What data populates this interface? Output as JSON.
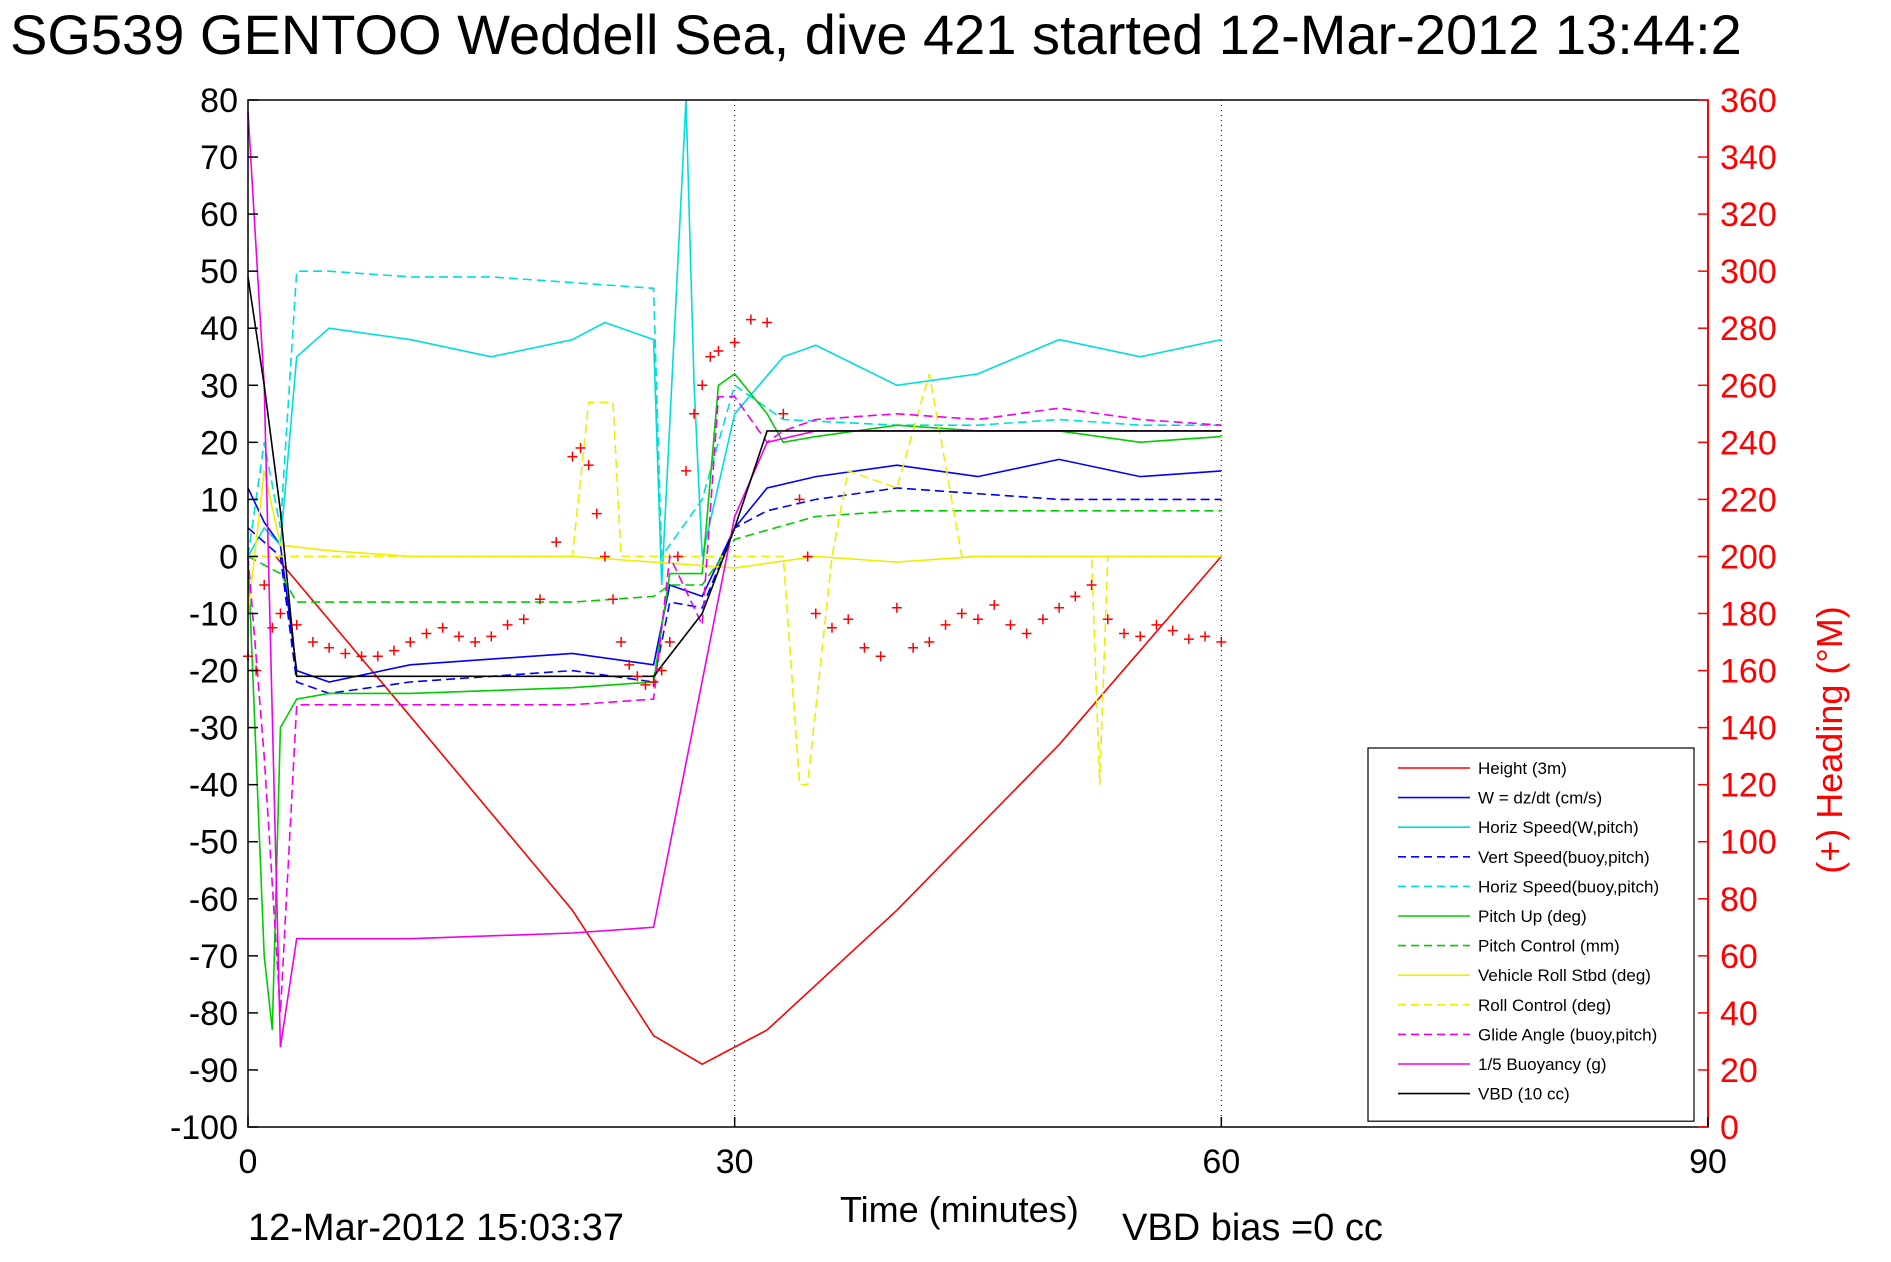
{
  "chart_data": {
    "type": "line",
    "title": "SG539 GENTOO Weddell Sea, dive 421 started 12-Mar-2012 13:44:2",
    "xlabel": "Time (minutes)",
    "ylabel": "",
    "y2label": "(+) Heading (°M)",
    "xlim": [
      0,
      90
    ],
    "ylim": [
      -100,
      80
    ],
    "y2lim": [
      0,
      360
    ],
    "x_ticks": [
      0,
      30,
      60,
      90
    ],
    "y_ticks": [
      80,
      70,
      60,
      50,
      40,
      30,
      20,
      10,
      0,
      -10,
      -20,
      -30,
      -40,
      -50,
      -60,
      -70,
      -80,
      -90,
      -100
    ],
    "y2_ticks": [
      360,
      340,
      320,
      300,
      280,
      260,
      240,
      220,
      200,
      180,
      160,
      140,
      120,
      100,
      80,
      60,
      40,
      20,
      0
    ],
    "grid": "dotted vertical at x ticks",
    "legend_position": "bottom-right",
    "footer_timestamp": "12-Mar-2012 15:03:37",
    "footer_note": "VBD bias =0 cc",
    "series": [
      {
        "name": "Height (3m)",
        "color": "#ff0000",
        "dash": "solid",
        "x": [
          1.7,
          10,
          20,
          25,
          28,
          32,
          40,
          50,
          60
        ],
        "y": [
          0,
          -28,
          -62,
          -84,
          -89,
          -83,
          -62,
          -33,
          0
        ]
      },
      {
        "name": "W = dz/dt (cm/s)",
        "color": "#0000ff",
        "dash": "solid",
        "x": [
          0,
          1,
          2,
          3,
          5,
          10,
          15,
          20,
          25,
          26,
          28,
          30,
          32,
          35,
          40,
          45,
          50,
          55,
          60
        ],
        "y": [
          12,
          6,
          2,
          -20,
          -22,
          -19,
          -18,
          -17,
          -19,
          -5,
          -7,
          5,
          12,
          14,
          16,
          14,
          17,
          14,
          15
        ]
      },
      {
        "name": "Horiz Speed(W,pitch)",
        "color": "#00dddd",
        "dash": "solid",
        "x": [
          0,
          1,
          2,
          3,
          5,
          10,
          15,
          20,
          22,
          25,
          25.5,
          27,
          27.5,
          28,
          30,
          33,
          35,
          40,
          45,
          50,
          55,
          60
        ],
        "y": [
          0,
          5,
          2,
          35,
          40,
          38,
          35,
          38,
          41,
          38,
          -5,
          80,
          30,
          0,
          25,
          35,
          37,
          30,
          32,
          38,
          35,
          38
        ]
      },
      {
        "name": "Vert Speed(buoy,pitch)",
        "color": "#0000ff",
        "dash": "dashed",
        "x": [
          0,
          2,
          3,
          5,
          10,
          15,
          20,
          25,
          26,
          28,
          30,
          32,
          35,
          40,
          45,
          50,
          55,
          60
        ],
        "y": [
          5,
          0,
          -22,
          -24,
          -22,
          -21,
          -20,
          -22,
          -8,
          -9,
          5,
          8,
          10,
          12,
          11,
          10,
          10,
          10
        ]
      },
      {
        "name": "Horiz Speed(buoy,pitch)",
        "color": "#00dddd",
        "dash": "dashed",
        "x": [
          0,
          1,
          2,
          3,
          5,
          10,
          15,
          20,
          25,
          25.5,
          28,
          30,
          33,
          40,
          45,
          50,
          55,
          60
        ],
        "y": [
          0,
          20,
          5,
          50,
          50,
          49,
          49,
          48,
          47,
          0,
          10,
          30,
          24,
          23,
          23,
          24,
          23,
          23
        ]
      },
      {
        "name": "Pitch Up (deg)",
        "color": "#00cc00",
        "dash": "solid",
        "x": [
          0,
          1,
          1.5,
          2,
          3,
          5,
          10,
          20,
          25,
          26,
          28,
          29,
          30,
          32,
          33,
          35,
          40,
          45,
          50,
          55,
          60
        ],
        "y": [
          0,
          -70,
          -83,
          -30,
          -25,
          -24,
          -24,
          -23,
          -22,
          -3,
          -3,
          30,
          32,
          25,
          20,
          21,
          23,
          22,
          22,
          20,
          21
        ]
      },
      {
        "name": "Pitch Control (mm)",
        "color": "#00cc00",
        "dash": "dashed",
        "x": [
          0,
          2,
          3,
          10,
          20,
          25,
          26,
          28,
          30,
          35,
          40,
          50,
          60
        ],
        "y": [
          0,
          -3,
          -8,
          -8,
          -8,
          -7,
          -5,
          -5,
          3,
          7,
          8,
          8,
          8
        ]
      },
      {
        "name": "Vehicle Roll Stbd (deg)",
        "color": "#eeee00",
        "dash": "solid",
        "x": [
          0,
          1,
          2,
          5,
          10,
          15,
          20,
          25,
          30,
          35,
          40,
          45,
          50,
          55,
          60
        ],
        "y": [
          -10,
          15,
          2,
          1,
          0,
          0,
          0,
          -1,
          -2,
          0,
          -1,
          0,
          0,
          0,
          0
        ]
      },
      {
        "name": "Roll Control (deg)",
        "color": "#eeee00",
        "dash": "dashed",
        "x": [
          0,
          10,
          20,
          21,
          22.5,
          23,
          25,
          33,
          34,
          34.5,
          36,
          37,
          40,
          42,
          44,
          50,
          52,
          52.5,
          53,
          60
        ],
        "y": [
          0,
          0,
          0,
          27,
          27,
          0,
          0,
          0,
          -40,
          -40,
          0,
          15,
          12,
          32,
          0,
          0,
          0,
          -40,
          0,
          0
        ]
      },
      {
        "name": "Glide Angle (buoy,pitch)",
        "color": "#ee00ee",
        "dash": "dashed",
        "x": [
          0,
          1,
          2,
          3,
          5,
          10,
          20,
          25,
          26,
          28,
          29,
          30,
          32,
          33,
          35,
          40,
          45,
          50,
          55,
          60
        ],
        "y": [
          0,
          -35,
          -80,
          -26,
          -26,
          -26,
          -26,
          -25,
          0,
          -12,
          28,
          28,
          20,
          22,
          24,
          25,
          24,
          26,
          24,
          23
        ]
      },
      {
        "name": "1/5 Buoyancy (g)",
        "color": "#ee00ee",
        "dash": "solid",
        "x": [
          0,
          1,
          2,
          3,
          10,
          20,
          25,
          30,
          32,
          35,
          40,
          50,
          60
        ],
        "y": [
          78,
          30,
          -86,
          -67,
          -67,
          -66,
          -65,
          7,
          20,
          22,
          22,
          22,
          22
        ]
      },
      {
        "name": "VBD (10 cc)",
        "color": "#000000",
        "dash": "solid",
        "x": [
          0,
          1,
          2,
          3,
          5,
          10,
          20,
          25,
          28,
          30,
          32,
          35,
          40,
          50,
          60
        ],
        "y": [
          49,
          30,
          8,
          -21,
          -21,
          -21,
          -21,
          -21,
          -10,
          5,
          22,
          22,
          22,
          22,
          22
        ]
      }
    ],
    "heading_series": {
      "name": "(+) Heading (°M)",
      "color": "#ff0000",
      "marker": "+",
      "x": [
        0,
        0.5,
        1,
        1.5,
        2,
        3,
        4,
        5,
        6,
        7,
        8,
        9,
        10,
        11,
        12,
        13,
        14,
        15,
        16,
        17,
        18,
        19,
        20,
        20.5,
        21,
        21.5,
        22,
        22.5,
        23,
        23.5,
        24,
        24.5,
        25,
        25.5,
        26,
        26.5,
        27,
        27.5,
        28,
        28.5,
        29,
        30,
        31,
        32,
        33,
        34,
        34.5,
        35,
        36,
        37,
        38,
        39,
        40,
        41,
        42,
        43,
        44,
        45,
        46,
        47,
        48,
        49,
        50,
        51,
        52,
        53,
        54,
        55,
        56,
        57,
        58,
        59,
        60
      ],
      "y": [
        165,
        160,
        190,
        175,
        180,
        176,
        170,
        168,
        166,
        165,
        165,
        167,
        170,
        173,
        175,
        172,
        170,
        172,
        176,
        178,
        185,
        205,
        235,
        238,
        232,
        215,
        200,
        185,
        170,
        162,
        158,
        155,
        156,
        160,
        170,
        200,
        230,
        250,
        260,
        270,
        272,
        275,
        283,
        282,
        250,
        220,
        200,
        180,
        175,
        178,
        168,
        165,
        182,
        168,
        170,
        176,
        180,
        178,
        183,
        176,
        173,
        178,
        182,
        186,
        190,
        178,
        173,
        172,
        176,
        174,
        171,
        172,
        170
      ]
    },
    "legend_entries": [
      {
        "label": "Height (3m)",
        "color": "#ff0000",
        "dash": "solid"
      },
      {
        "label": "W = dz/dt (cm/s)",
        "color": "#0000ff",
        "dash": "solid"
      },
      {
        "label": "Horiz Speed(W,pitch)",
        "color": "#00dddd",
        "dash": "solid"
      },
      {
        "label": "Vert Speed(buoy,pitch)",
        "color": "#0000ff",
        "dash": "dashed"
      },
      {
        "label": "Horiz Speed(buoy,pitch)",
        "color": "#00dddd",
        "dash": "dashed"
      },
      {
        "label": "Pitch Up (deg)",
        "color": "#00cc00",
        "dash": "solid"
      },
      {
        "label": "Pitch Control (mm)",
        "color": "#00cc00",
        "dash": "dashed"
      },
      {
        "label": "Vehicle Roll Stbd (deg)",
        "color": "#eeee00",
        "dash": "solid"
      },
      {
        "label": "Roll Control (deg)",
        "color": "#eeee00",
        "dash": "dashed"
      },
      {
        "label": "Glide Angle (buoy,pitch)",
        "color": "#ee00ee",
        "dash": "dashed"
      },
      {
        "label": "1/5 Buoyancy (g)",
        "color": "#ee00ee",
        "dash": "solid"
      },
      {
        "label": "VBD (10 cc)",
        "color": "#000000",
        "dash": "solid"
      }
    ]
  }
}
